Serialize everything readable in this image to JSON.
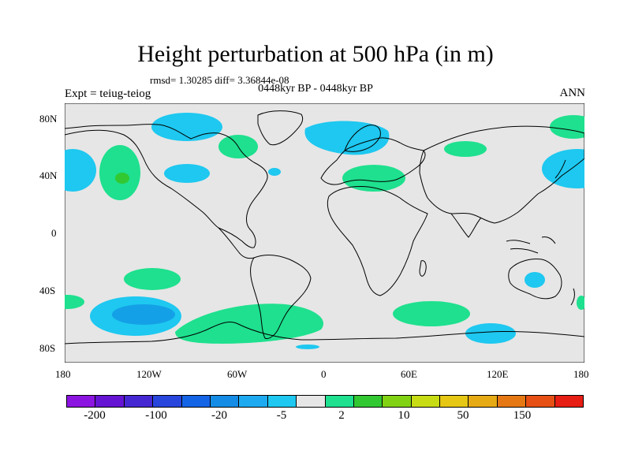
{
  "title": "Height perturbation at 500 hPa (in m)",
  "stats": "rmsd= 1.30285 diff= 3.36844e-08",
  "period": "0448kyr BP - 0448kyr BP",
  "expt": "Expt = teiug-teiog",
  "season": "ANN",
  "y_ticks": [
    "80N",
    "40N",
    "0",
    "40S",
    "80S"
  ],
  "x_ticks": [
    "180",
    "120W",
    "60W",
    "0",
    "60E",
    "120E",
    "180"
  ],
  "colors": {
    "background": "#e6e6e6",
    "land_outline": "#000000",
    "positive_light": "#1ee08e",
    "positive_mid": "#32c832",
    "negative_light": "#1ec8f0",
    "negative_mid": "#14a0e6",
    "negative_strong": "#0a78dc"
  },
  "colorbar": {
    "colors": [
      "#8c14e0",
      "#6414d2",
      "#4628d2",
      "#2846dc",
      "#1464e6",
      "#148ce6",
      "#1eaaf0",
      "#1ec8f0",
      "#e6e6e6",
      "#1ee08e",
      "#32c832",
      "#82d214",
      "#c8dc14",
      "#e6c814",
      "#e6aa14",
      "#e67814",
      "#e65014",
      "#e61e14"
    ],
    "labels": [
      "-200",
      "-100",
      "-20",
      "-5",
      "2",
      "10",
      "50",
      "150"
    ]
  }
}
